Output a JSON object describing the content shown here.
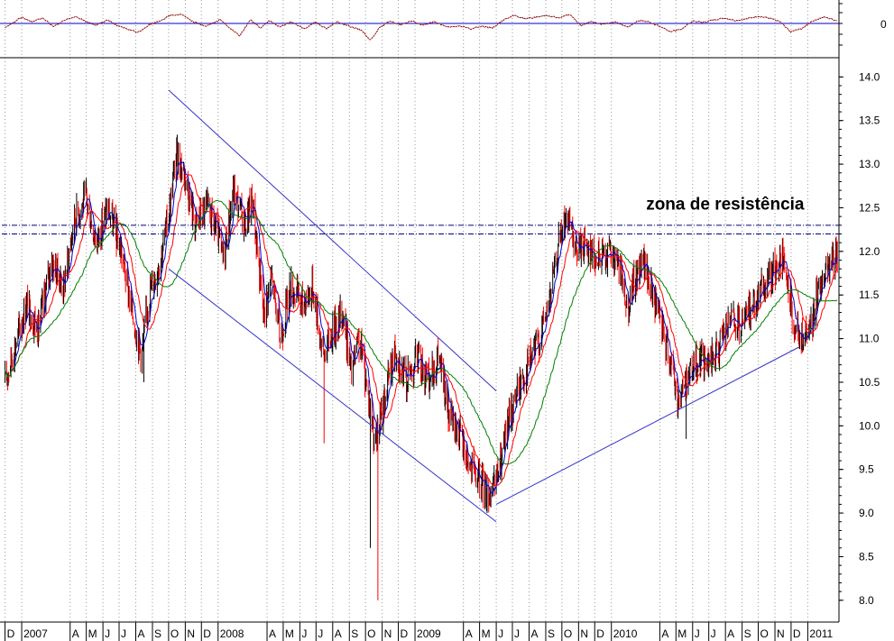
{
  "chart_data": {
    "type": "candlestick",
    "title": "",
    "grid": true,
    "colors": {
      "up_bar": "#000000",
      "down_bar": "#ff0000",
      "ma_fast": "#0000cc",
      "ma_mid": "#ff0000",
      "ma_slow": "#008000",
      "channel": "#3333cc",
      "resistance": "#000080",
      "oscillator": "#cc0000",
      "oscillator_zero": "#0000cc"
    },
    "y_axis": {
      "range": [
        7.75,
        14.2
      ],
      "ticks": [
        "14.0",
        "13.5",
        "13.0",
        "12.5",
        "12.0",
        "11.5",
        "11.0",
        "10.5",
        "10.0",
        "9.5",
        "9.0",
        "8.5",
        "8.0"
      ]
    },
    "oscillator_panel": {
      "zero_label": "0"
    },
    "x_axis": {
      "start": "2006-11-25",
      "end": "2011-02-28",
      "months": [
        {
          "label": "D",
          "date": "2006-12-01"
        },
        {
          "label": "2007",
          "date": "2007-01-01"
        },
        {
          "label": "A",
          "date": "2007-04-01"
        },
        {
          "label": "M",
          "date": "2007-05-01"
        },
        {
          "label": "J",
          "date": "2007-06-01"
        },
        {
          "label": "J",
          "date": "2007-07-01"
        },
        {
          "label": "A",
          "date": "2007-08-01"
        },
        {
          "label": "S",
          "date": "2007-09-01"
        },
        {
          "label": "O",
          "date": "2007-10-01"
        },
        {
          "label": "N",
          "date": "2007-11-01"
        },
        {
          "label": "D",
          "date": "2007-12-01"
        },
        {
          "label": "2008",
          "date": "2008-01-01"
        },
        {
          "label": "A",
          "date": "2008-04-01"
        },
        {
          "label": "M",
          "date": "2008-05-01"
        },
        {
          "label": "J",
          "date": "2008-06-01"
        },
        {
          "label": "J",
          "date": "2008-07-01"
        },
        {
          "label": "A",
          "date": "2008-08-01"
        },
        {
          "label": "S",
          "date": "2008-09-01"
        },
        {
          "label": "O",
          "date": "2008-10-01"
        },
        {
          "label": "N",
          "date": "2008-11-01"
        },
        {
          "label": "D",
          "date": "2008-12-01"
        },
        {
          "label": "2009",
          "date": "2009-01-01"
        },
        {
          "label": "A",
          "date": "2009-04-01"
        },
        {
          "label": "M",
          "date": "2009-05-01"
        },
        {
          "label": "J",
          "date": "2009-06-01"
        },
        {
          "label": "J",
          "date": "2009-07-01"
        },
        {
          "label": "A",
          "date": "2009-08-01"
        },
        {
          "label": "S",
          "date": "2009-09-01"
        },
        {
          "label": "O",
          "date": "2009-10-01"
        },
        {
          "label": "N",
          "date": "2009-11-01"
        },
        {
          "label": "D",
          "date": "2009-12-01"
        },
        {
          "label": "2010",
          "date": "2010-01-01"
        },
        {
          "label": "A",
          "date": "2010-04-01"
        },
        {
          "label": "M",
          "date": "2010-05-01"
        },
        {
          "label": "J",
          "date": "2010-06-01"
        },
        {
          "label": "J",
          "date": "2010-07-01"
        },
        {
          "label": "A",
          "date": "2010-08-01"
        },
        {
          "label": "S",
          "date": "2010-09-01"
        },
        {
          "label": "O",
          "date": "2010-10-01"
        },
        {
          "label": "N",
          "date": "2010-11-01"
        },
        {
          "label": "D",
          "date": "2010-12-01"
        },
        {
          "label": "2011",
          "date": "2011-01-01"
        }
      ]
    },
    "price_path": [
      [
        "2006-12-01",
        10.5
      ],
      [
        "2007-01-10",
        11.4
      ],
      [
        "2007-02-01",
        11.1
      ],
      [
        "2007-02-25",
        11.9
      ],
      [
        "2007-03-20",
        11.6
      ],
      [
        "2007-04-10",
        12.4
      ],
      [
        "2007-05-01",
        12.6
      ],
      [
        "2007-05-20",
        12.1
      ],
      [
        "2007-06-10",
        12.5
      ],
      [
        "2007-07-05",
        12.0
      ],
      [
        "2007-07-25",
        11.3
      ],
      [
        "2007-08-12",
        10.8
      ],
      [
        "2007-08-25",
        11.5
      ],
      [
        "2007-09-15",
        11.9
      ],
      [
        "2007-10-01",
        12.4
      ],
      [
        "2007-10-15",
        13.1
      ],
      [
        "2007-10-31",
        12.9
      ],
      [
        "2007-11-20",
        12.3
      ],
      [
        "2007-12-10",
        12.5
      ],
      [
        "2007-12-31",
        12.2
      ],
      [
        "2008-01-10",
        11.9
      ],
      [
        "2008-01-30",
        12.7
      ],
      [
        "2008-02-20",
        12.3
      ],
      [
        "2008-03-05",
        12.6
      ],
      [
        "2008-03-25",
        11.3
      ],
      [
        "2008-04-10",
        11.7
      ],
      [
        "2008-04-25",
        11.0
      ],
      [
        "2008-05-15",
        11.6
      ],
      [
        "2008-06-05",
        11.4
      ],
      [
        "2008-06-25",
        11.6
      ],
      [
        "2008-07-15",
        10.8
      ],
      [
        "2008-08-01",
        11.1
      ],
      [
        "2008-08-20",
        11.3
      ],
      [
        "2008-09-05",
        10.6
      ],
      [
        "2008-09-20",
        11.0
      ],
      [
        "2008-10-05",
        10.4
      ],
      [
        "2008-10-20",
        9.8
      ],
      [
        "2008-11-05",
        10.3
      ],
      [
        "2008-11-25",
        10.9
      ],
      [
        "2008-12-15",
        10.5
      ],
      [
        "2009-01-05",
        10.8
      ],
      [
        "2009-01-25",
        10.5
      ],
      [
        "2009-02-15",
        10.8
      ],
      [
        "2009-03-05",
        10.1
      ],
      [
        "2009-03-25",
        9.9
      ],
      [
        "2009-04-10",
        9.6
      ],
      [
        "2009-04-25",
        9.4
      ],
      [
        "2009-05-10",
        9.3
      ],
      [
        "2009-05-25",
        9.2
      ],
      [
        "2009-06-10",
        9.6
      ],
      [
        "2009-06-25",
        10.1
      ],
      [
        "2009-07-10",
        10.4
      ],
      [
        "2009-07-30",
        10.7
      ],
      [
        "2009-08-20",
        11.0
      ],
      [
        "2009-09-10",
        11.5
      ],
      [
        "2009-09-25",
        12.1
      ],
      [
        "2009-10-10",
        12.4
      ],
      [
        "2009-10-25",
        12.0
      ],
      [
        "2009-11-15",
        12.1
      ],
      [
        "2009-12-05",
        11.9
      ],
      [
        "2009-12-25",
        12.0
      ],
      [
        "2010-01-15",
        11.8
      ],
      [
        "2010-02-01",
        11.4
      ],
      [
        "2010-02-15",
        11.7
      ],
      [
        "2010-03-01",
        11.9
      ],
      [
        "2010-03-15",
        11.6
      ],
      [
        "2010-04-01",
        11.2
      ],
      [
        "2010-04-20",
        10.8
      ],
      [
        "2010-05-05",
        10.3
      ],
      [
        "2010-05-25",
        10.6
      ],
      [
        "2010-06-15",
        10.8
      ],
      [
        "2010-07-01",
        10.7
      ],
      [
        "2010-07-20",
        10.9
      ],
      [
        "2010-08-10",
        11.2
      ],
      [
        "2010-08-30",
        11.1
      ],
      [
        "2010-09-20",
        11.4
      ],
      [
        "2010-10-10",
        11.6
      ],
      [
        "2010-10-31",
        11.8
      ],
      [
        "2010-11-15",
        11.9
      ],
      [
        "2010-11-30",
        11.4
      ],
      [
        "2010-12-15",
        11.0
      ],
      [
        "2011-01-01",
        11.0
      ],
      [
        "2011-01-15",
        11.4
      ],
      [
        "2011-02-01",
        11.8
      ],
      [
        "2011-02-25",
        11.9
      ]
    ],
    "oscillator_path": [
      [
        "2006-12-01",
        -0.5
      ],
      [
        "2007-01-01",
        0.7
      ],
      [
        "2007-01-20",
        0.2
      ],
      [
        "2007-02-10",
        0.6
      ],
      [
        "2007-03-01",
        -0.4
      ],
      [
        "2007-03-20",
        0.3
      ],
      [
        "2007-04-10",
        0.8
      ],
      [
        "2007-05-01",
        0.2
      ],
      [
        "2007-05-20",
        -0.2
      ],
      [
        "2007-06-10",
        0.4
      ],
      [
        "2007-06-30",
        -0.3
      ],
      [
        "2007-07-20",
        -0.7
      ],
      [
        "2007-08-05",
        -1.0
      ],
      [
        "2007-08-25",
        -0.2
      ],
      [
        "2007-09-15",
        0.3
      ],
      [
        "2007-10-05",
        0.9
      ],
      [
        "2007-10-25",
        1.0
      ],
      [
        "2007-11-15",
        0.2
      ],
      [
        "2007-12-10",
        -0.3
      ],
      [
        "2008-01-05",
        0.4
      ],
      [
        "2008-01-25",
        -0.6
      ],
      [
        "2008-02-10",
        -1.4
      ],
      [
        "2008-03-01",
        0.4
      ],
      [
        "2008-03-20",
        -0.5
      ],
      [
        "2008-04-05",
        0.3
      ],
      [
        "2008-04-25",
        -0.4
      ],
      [
        "2008-05-15",
        0.2
      ],
      [
        "2008-06-10",
        -0.6
      ],
      [
        "2008-06-30",
        0.2
      ],
      [
        "2008-07-20",
        -0.6
      ],
      [
        "2008-08-10",
        0.2
      ],
      [
        "2008-09-01",
        -0.3
      ],
      [
        "2008-09-25",
        -0.8
      ],
      [
        "2008-10-10",
        -1.9
      ],
      [
        "2008-10-25",
        -0.6
      ],
      [
        "2008-11-15",
        0.3
      ],
      [
        "2008-12-05",
        -0.2
      ],
      [
        "2008-12-25",
        0.3
      ],
      [
        "2009-01-15",
        -0.2
      ],
      [
        "2009-02-05",
        0.2
      ],
      [
        "2009-03-01",
        -0.4
      ],
      [
        "2009-03-25",
        -0.3
      ],
      [
        "2009-04-15",
        -0.6
      ],
      [
        "2009-05-05",
        -0.3
      ],
      [
        "2009-05-25",
        -0.5
      ],
      [
        "2009-06-15",
        0.4
      ],
      [
        "2009-07-05",
        0.9
      ],
      [
        "2009-07-25",
        0.5
      ],
      [
        "2009-08-15",
        0.7
      ],
      [
        "2009-09-05",
        0.9
      ],
      [
        "2009-09-25",
        0.6
      ],
      [
        "2009-10-15",
        1.0
      ],
      [
        "2009-11-05",
        -0.2
      ],
      [
        "2009-11-25",
        0.2
      ],
      [
        "2009-12-15",
        -0.1
      ],
      [
        "2010-01-10",
        0.2
      ],
      [
        "2010-01-31",
        -0.4
      ],
      [
        "2010-02-20",
        0.3
      ],
      [
        "2010-03-10",
        0.2
      ],
      [
        "2010-03-31",
        -0.3
      ],
      [
        "2010-04-20",
        -0.9
      ],
      [
        "2010-05-10",
        -0.7
      ],
      [
        "2010-06-01",
        0.3
      ],
      [
        "2010-06-20",
        0.1
      ],
      [
        "2010-07-10",
        0.4
      ],
      [
        "2010-07-31",
        0.6
      ],
      [
        "2010-08-20",
        0.3
      ],
      [
        "2010-09-10",
        0.5
      ],
      [
        "2010-09-30",
        0.8
      ],
      [
        "2010-10-20",
        0.6
      ],
      [
        "2010-11-10",
        0.2
      ],
      [
        "2010-11-30",
        -0.9
      ],
      [
        "2010-12-20",
        -0.6
      ],
      [
        "2011-01-10",
        0.3
      ],
      [
        "2011-01-31",
        0.7
      ],
      [
        "2011-02-25",
        0.3
      ]
    ],
    "lines": [
      {
        "kind": "channel_top",
        "from": [
          "2007-10-01",
          13.85
        ],
        "to": [
          "2009-06-01",
          10.4
        ]
      },
      {
        "kind": "channel_bottom",
        "from": [
          "2007-10-01",
          11.8
        ],
        "to": [
          "2009-06-01",
          8.9
        ]
      },
      {
        "kind": "uptrend",
        "from": [
          "2009-06-01",
          9.1
        ],
        "to": [
          "2010-12-15",
          10.9
        ]
      },
      {
        "kind": "resistance",
        "from": [
          "2006-11-25",
          12.3
        ],
        "to": [
          "2011-02-28",
          12.3
        ]
      },
      {
        "kind": "resistance",
        "from": [
          "2006-11-25",
          12.2
        ],
        "to": [
          "2011-02-28",
          12.2
        ]
      }
    ],
    "annotations": [
      {
        "text": "zona de resistência",
        "x": "2010-02-01",
        "y": 12.5
      }
    ]
  }
}
